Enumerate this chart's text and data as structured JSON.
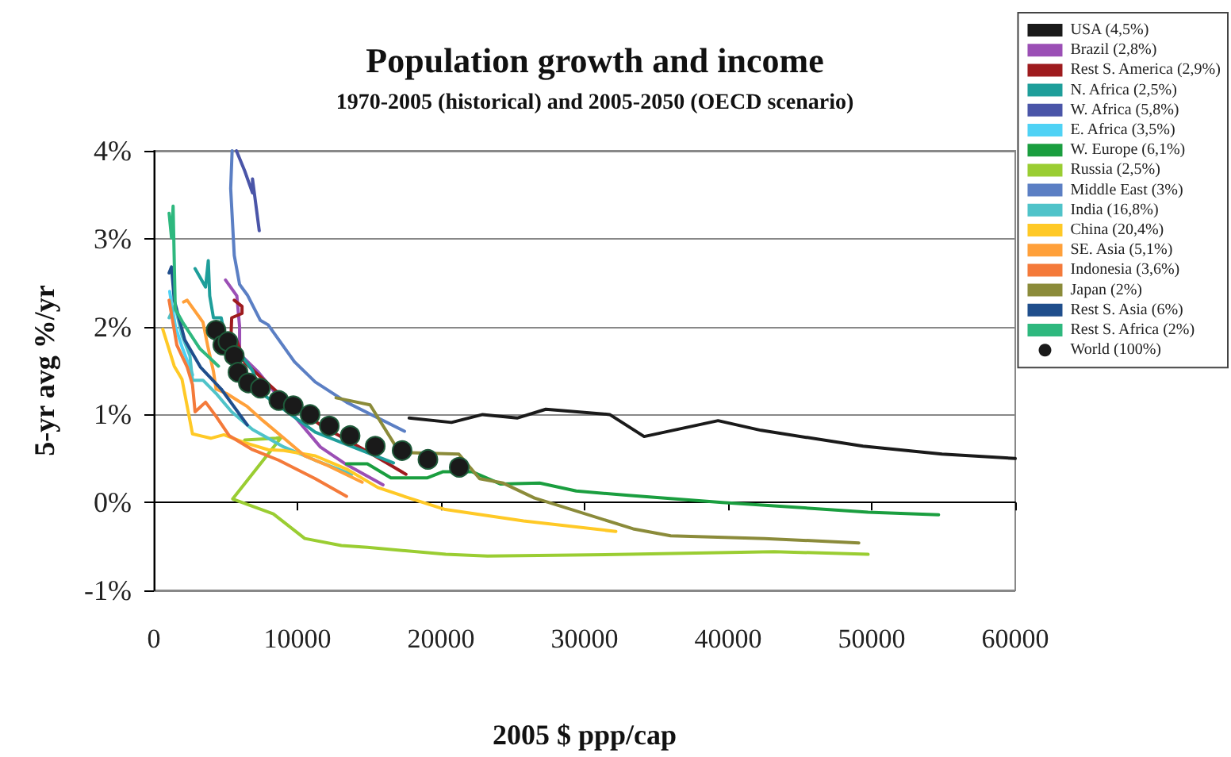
{
  "chart_data": {
    "type": "line",
    "title": "Population growth and income",
    "subtitle": "1970-2005 (historical) and 2005-2050 (OECD scenario)",
    "xlabel": "2005 $ ppp/cap",
    "ylabel": "5-yr avg %/yr",
    "xlim": [
      0,
      60000
    ],
    "xticks": [
      0,
      10000,
      20000,
      30000,
      40000,
      50000,
      60000
    ],
    "ylim": [
      -1,
      4
    ],
    "yticks": [
      {
        "value": -1,
        "label": "-1%"
      },
      {
        "value": 0,
        "label": "0%"
      },
      {
        "value": 1,
        "label": "1%"
      },
      {
        "value": 2,
        "label": "2%"
      },
      {
        "value": 3,
        "label": "3%"
      },
      {
        "value": 4,
        "label": "4%"
      }
    ],
    "grid": "y",
    "legend": "top right",
    "marker": "none",
    "series": [
      {
        "name": "USA (4,5%)",
        "color": "#1a1a1a",
        "x": [
          17780,
          20730,
          22900,
          25300,
          27300,
          31750,
          34150,
          39300,
          42300,
          49400,
          54900,
          60000
        ],
        "values": [
          0.96,
          0.91,
          1.0,
          0.96,
          1.06,
          1.0,
          0.75,
          0.93,
          0.82,
          0.64,
          0.55,
          0.5
        ]
      },
      {
        "name": "Brazil (2,8%)",
        "color": "#9b4fb5",
        "x": [
          4990,
          5780,
          5970,
          5970,
          7230,
          9790,
          11600,
          13420,
          15960
        ],
        "values": [
          2.53,
          2.35,
          2.0,
          1.69,
          1.49,
          0.98,
          0.63,
          0.43,
          0.2
        ]
      },
      {
        "name": "Rest S. America (2,9%)",
        "color": "#9e1b1e",
        "x": [
          5600,
          6140,
          6140,
          5420,
          5350,
          5780,
          6330,
          8700,
          11600,
          14870,
          17560
        ],
        "values": [
          2.3,
          2.23,
          2.15,
          2.1,
          1.79,
          1.84,
          1.59,
          1.24,
          0.88,
          0.58,
          0.32
        ]
      },
      {
        "name": "N. Africa (2,5%)",
        "color": "#1e9e9a",
        "x": [
          2870,
          3600,
          3790,
          3890,
          4150,
          4690,
          4880,
          6870,
          7420,
          11240,
          16690
        ],
        "values": [
          2.66,
          2.45,
          2.75,
          2.35,
          2.1,
          2.1,
          1.95,
          1.5,
          1.25,
          0.8,
          0.45
        ]
      },
      {
        "name": "W. Africa (5,8%)",
        "color": "#4a55a8",
        "x": [
          7340,
          6870,
          6870,
          6330,
          5750
        ],
        "values": [
          3.09,
          3.68,
          3.52,
          3.77,
          4.0
        ]
      },
      {
        "name": "E. Africa (3,5%)",
        "color": "#4fd2f5",
        "x": [
          1100,
          1500,
          2000,
          2700
        ],
        "values": [
          2.4,
          2.0,
          1.75,
          1.45
        ]
      },
      {
        "name": "W. Europe (6,1%)",
        "color": "#1a9e3f",
        "x": [
          13420,
          14870,
          16510,
          19060,
          20150,
          22150,
          24140,
          26870,
          29420,
          33060,
          39600,
          49750,
          54660
        ],
        "values": [
          0.44,
          0.44,
          0.28,
          0.28,
          0.35,
          0.35,
          0.21,
          0.22,
          0.13,
          0.08,
          0.0,
          -0.11,
          -0.14
        ]
      },
      {
        "name": "Russia (2,5%)",
        "color": "#9acd32",
        "x": [
          6330,
          8510,
          8870,
          5490,
          8320,
          10510,
          13060,
          14870,
          20330,
          23240,
          33060,
          43200,
          49750
        ],
        "values": [
          0.71,
          0.73,
          0.74,
          0.04,
          -0.13,
          -0.41,
          -0.49,
          -0.51,
          -0.59,
          -0.61,
          -0.59,
          -0.56,
          -0.59
        ]
      },
      {
        "name": "Middle East (3%)",
        "color": "#5b7fc4",
        "x": [
          5450,
          5350,
          5600,
          5970,
          6510,
          7420,
          7960,
          9790,
          11240,
          13420,
          17460
        ],
        "values": [
          4.0,
          3.57,
          2.81,
          2.48,
          2.36,
          2.07,
          2.02,
          1.6,
          1.37,
          1.14,
          0.81
        ]
      },
      {
        "name": "India (16,8%)",
        "color": "#4fc3c9",
        "x": [
          1060,
          1420,
          1600,
          1960,
          2510,
          2690,
          3420,
          4330,
          5420,
          6870,
          9060,
          11240,
          13780
        ],
        "values": [
          2.1,
          2.23,
          2.15,
          1.9,
          1.67,
          1.39,
          1.39,
          1.24,
          1.03,
          0.83,
          0.63,
          0.48,
          0.32
        ]
      },
      {
        "name": "China (20,4%)",
        "color": "#ffc926",
        "x": [
          620,
          1420,
          1960,
          2690,
          3960,
          4880,
          6330,
          7960,
          9060,
          11240,
          13420,
          15600,
          17780,
          20290,
          25750,
          32180
        ],
        "values": [
          1.97,
          1.55,
          1.4,
          0.78,
          0.73,
          0.77,
          0.68,
          0.6,
          0.59,
          0.53,
          0.38,
          0.17,
          0.05,
          -0.08,
          -0.21,
          -0.33
        ]
      },
      {
        "name": "SE. Asia (5,1%)",
        "color": "#ffa03a",
        "x": [
          2070,
          2320,
          3420,
          3790,
          4150,
          4330,
          5050,
          6510,
          7600,
          9060,
          10510,
          11970,
          14510
        ],
        "values": [
          2.28,
          2.3,
          2.05,
          1.75,
          1.49,
          1.29,
          1.24,
          1.09,
          0.93,
          0.73,
          0.53,
          0.43,
          0.23
        ]
      },
      {
        "name": "Indonesia (3,6%)",
        "color": "#f47a3a",
        "x": [
          1060,
          1600,
          2320,
          2690,
          2870,
          3600,
          4330,
          5240,
          6870,
          8700,
          11240,
          13420
        ],
        "values": [
          2.3,
          1.79,
          1.54,
          1.34,
          1.03,
          1.14,
          0.98,
          0.76,
          0.6,
          0.48,
          0.27,
          0.07
        ]
      },
      {
        "name": "Japan (2%)",
        "color": "#8b8b3a",
        "x": [
          12690,
          15060,
          16880,
          17050,
          21240,
          22690,
          24330,
          26510,
          28690,
          33380,
          36000,
          42550,
          49100
        ],
        "values": [
          1.19,
          1.11,
          0.63,
          0.57,
          0.55,
          0.27,
          0.22,
          0.05,
          -0.06,
          -0.3,
          -0.38,
          -0.41,
          -0.46
        ]
      },
      {
        "name": "Rest S. Asia (6%)",
        "color": "#1f4e8c",
        "x": [
          1060,
          1230,
          1420,
          2150,
          3240,
          4690,
          6510
        ],
        "values": [
          2.61,
          2.68,
          2.3,
          1.85,
          1.54,
          1.29,
          0.88
        ]
      },
      {
        "name": "Rest S. Africa (2%)",
        "color": "#2eb87e",
        "x": [
          1060,
          1230,
          1340,
          1490,
          2000,
          3200,
          4500
        ],
        "values": [
          3.29,
          3.01,
          3.37,
          2.2,
          2.05,
          1.75,
          1.55
        ]
      },
      {
        "name": "World (100%)",
        "type": "scatter",
        "marker": "circle",
        "color": "#1a1a1a",
        "x": [
          4330,
          4800,
          5160,
          5600,
          5860,
          6580,
          7420,
          8700,
          9710,
          10880,
          12220,
          13670,
          15420,
          17290,
          19090,
          21270
        ],
        "values": [
          1.96,
          1.79,
          1.83,
          1.67,
          1.48,
          1.36,
          1.3,
          1.16,
          1.1,
          1.0,
          0.87,
          0.76,
          0.64,
          0.59,
          0.49,
          0.4
        ]
      }
    ]
  }
}
